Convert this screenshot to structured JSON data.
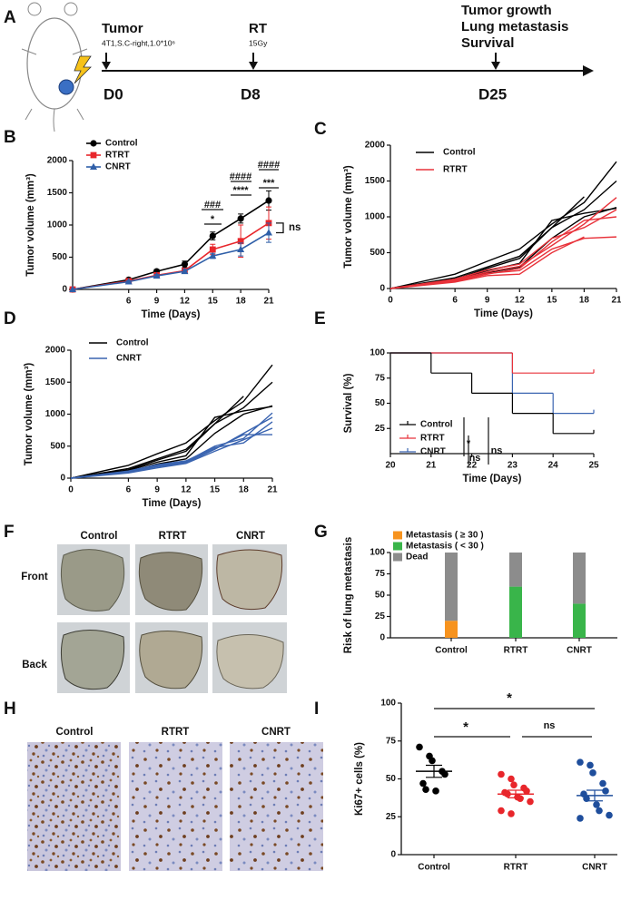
{
  "panel_labels": [
    "A",
    "B",
    "C",
    "D",
    "E",
    "F",
    "G",
    "H",
    "I"
  ],
  "timeline": {
    "events": [
      {
        "lines": [
          "Tumor"
        ],
        "detail": "4T1,S.C-right,1.0*10⁶",
        "day": "D0"
      },
      {
        "lines": [
          "RT"
        ],
        "detail": "15Gy",
        "day": "D8"
      },
      {
        "lines": [
          "Tumor growth",
          "Lung metastasis",
          "Survival"
        ],
        "day": "D25"
      }
    ]
  },
  "chart_data": [
    {
      "type": "line",
      "x": [
        0,
        6,
        9,
        12,
        15,
        18,
        21
      ],
      "xlim": [
        0,
        21
      ],
      "xticks": [
        6,
        9,
        12,
        15,
        18,
        21
      ],
      "ylim": [
        0,
        2000
      ],
      "yticks": [
        0,
        500,
        1000,
        1500,
        2000
      ],
      "xlabel": "Time (Days)",
      "ylabel": "Tumor volume (mm³)",
      "series": [
        {
          "name": "Control",
          "color": "#000000",
          "marker": "circle",
          "values": [
            0,
            150,
            280,
            390,
            830,
            1100,
            1380
          ],
          "errors": [
            0,
            20,
            30,
            50,
            60,
            70,
            150
          ]
        },
        {
          "name": "RTRT",
          "color": "#e8262b",
          "marker": "square",
          "values": [
            0,
            130,
            220,
            290,
            620,
            750,
            1030
          ],
          "errors": [
            0,
            20,
            30,
            40,
            80,
            250,
            250
          ]
        },
        {
          "name": "CNRT",
          "color": "#2f5fa8",
          "marker": "triangle",
          "values": [
            0,
            120,
            210,
            280,
            520,
            620,
            880
          ],
          "errors": [
            0,
            15,
            20,
            30,
            40,
            100,
            150
          ]
        }
      ],
      "annotations": [
        "*",
        "###",
        "****",
        "####",
        "***",
        "####",
        "ns"
      ]
    },
    {
      "type": "multiline",
      "x": [
        0,
        6,
        9,
        12,
        15,
        18,
        21
      ],
      "xlim": [
        0,
        21
      ],
      "xticks": [
        0,
        6,
        9,
        12,
        15,
        18,
        21
      ],
      "ylim": [
        0,
        2000
      ],
      "yticks": [
        0,
        500,
        1000,
        1500,
        2000
      ],
      "xlabel": "Time (Days)",
      "ylabel": "Tumor volume (mm³)",
      "series": [
        {
          "name": "Control",
          "color": "#000000",
          "lines": [
            [
              0,
              200,
              380,
              550,
              900,
              1200,
              1770
            ],
            [
              0,
              150,
              300,
              450,
              850,
              1100,
              1500
            ],
            [
              0,
              120,
              250,
              350,
              950,
              1050,
              1120
            ],
            [
              0,
              100,
              220,
              300,
              700,
              1000,
              1130
            ],
            [
              0,
              130,
              280,
              420,
              850,
              1280,
              null
            ]
          ]
        },
        {
          "name": "RTRT",
          "color": "#e8323a",
          "lines": [
            [
              0,
              120,
              230,
              310,
              600,
              900,
              1270
            ],
            [
              0,
              100,
              200,
              280,
              650,
              950,
              1000
            ],
            [
              0,
              110,
              210,
              250,
              550,
              700,
              720
            ],
            [
              0,
              130,
              260,
              340,
              700,
              850,
              1100
            ],
            [
              0,
              90,
              180,
              200,
              500,
              720,
              null
            ]
          ]
        }
      ]
    },
    {
      "type": "multiline",
      "x": [
        0,
        6,
        9,
        12,
        15,
        18,
        21
      ],
      "xlim": [
        0,
        21
      ],
      "xticks": [
        0,
        6,
        9,
        12,
        15,
        18,
        21
      ],
      "ylim": [
        0,
        2000
      ],
      "yticks": [
        0,
        500,
        1000,
        1500,
        2000
      ],
      "xlabel": "Time (Days)",
      "ylabel": "Tumor volume (mm³)",
      "series": [
        {
          "name": "Control",
          "color": "#000000",
          "lines": [
            [
              0,
              200,
              380,
              550,
              900,
              1200,
              1770
            ],
            [
              0,
              150,
              300,
              450,
              850,
              1100,
              1500
            ],
            [
              0,
              120,
              250,
              350,
              950,
              1050,
              1120
            ],
            [
              0,
              100,
              220,
              300,
              700,
              1000,
              1130
            ],
            [
              0,
              130,
              280,
              420,
              850,
              1280,
              null
            ]
          ]
        },
        {
          "name": "CNRT",
          "color": "#3a64b0",
          "lines": [
            [
              0,
              100,
              200,
              260,
              500,
              620,
              1020
            ],
            [
              0,
              90,
              180,
              240,
              450,
              700,
              950
            ],
            [
              0,
              110,
              210,
              270,
              480,
              550,
              880
            ],
            [
              0,
              80,
              160,
              230,
              420,
              600,
              780
            ],
            [
              0,
              100,
              190,
              250,
              460,
              680,
              680
            ]
          ]
        }
      ]
    },
    {
      "type": "step",
      "xlim": [
        20,
        25
      ],
      "xticks": [
        20,
        21,
        22,
        23,
        24,
        25
      ],
      "ylim": [
        0,
        100
      ],
      "yticks": [
        25,
        50,
        75,
        100
      ],
      "xlabel": "Time (Days)",
      "ylabel": "Survival (%)",
      "series": [
        {
          "name": "CNRT",
          "color": "#3a64b0",
          "x": [
            20,
            23,
            24,
            25
          ],
          "values": [
            100,
            60,
            40,
            40
          ]
        },
        {
          "name": "RTRT",
          "color": "#e8323a",
          "x": [
            20,
            23,
            25
          ],
          "values": [
            100,
            80,
            80
          ]
        },
        {
          "name": "Control",
          "color": "#000000",
          "x": [
            20,
            21,
            22,
            23,
            24,
            25
          ],
          "values": [
            100,
            80,
            60,
            40,
            20,
            20
          ]
        }
      ],
      "legend_order": [
        2,
        1,
        0
      ],
      "annotations": [
        "*",
        "ns",
        "ns"
      ]
    },
    {
      "type": "stacked_bar",
      "categories": [
        "Control",
        "RTRT",
        "CNRT"
      ],
      "ylim": [
        0,
        100
      ],
      "yticks": [
        0,
        25,
        50,
        75,
        100
      ],
      "ylabel": "Risk of lung metastasis",
      "series": [
        {
          "name": "Metastasis ( ≥ 30 )",
          "color": "#f7931e",
          "values": [
            20,
            0,
            0
          ]
        },
        {
          "name": "Metastasis ( < 30 )",
          "color": "#39b54a",
          "values": [
            0,
            60,
            40
          ]
        },
        {
          "name": "Dead",
          "color": "#8c8c8c",
          "values": [
            80,
            40,
            60
          ]
        }
      ]
    },
    {
      "type": "dot_plot",
      "categories": [
        "Control",
        "RTRT",
        "CNRT"
      ],
      "ylim": [
        0,
        100
      ],
      "yticks": [
        0,
        25,
        50,
        75,
        100
      ],
      "ylabel": "Ki67+ cells (%)",
      "groups": [
        {
          "color": "#000000",
          "values": [
            71,
            65,
            62,
            55,
            53,
            47,
            43,
            42
          ],
          "mean": 55,
          "sem": 4
        },
        {
          "color": "#e8262b",
          "values": [
            53,
            50,
            46,
            44,
            42,
            41,
            40,
            38,
            37,
            35,
            29,
            27
          ],
          "mean": 40,
          "sem": 2.5
        },
        {
          "color": "#1f4e9c",
          "values": [
            61,
            59,
            54,
            47,
            42,
            40,
            37,
            33,
            29,
            26,
            24
          ],
          "mean": 39,
          "sem": 3.5
        }
      ],
      "annotations": [
        "*",
        "*",
        "ns"
      ]
    }
  ],
  "lung_images": {
    "columns": [
      "Control",
      "RTRT",
      "CNRT"
    ],
    "rows": [
      "Front",
      "Back"
    ]
  },
  "ihc_images": {
    "columns": [
      "Control",
      "RTRT",
      "CNRT"
    ]
  }
}
